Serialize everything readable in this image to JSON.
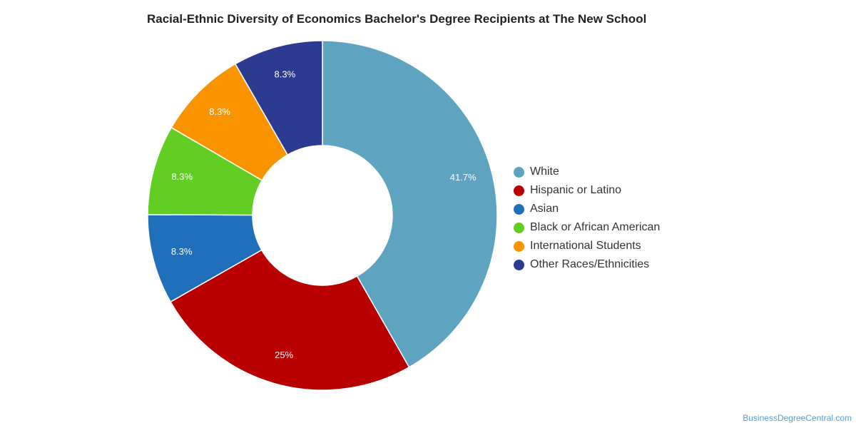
{
  "chart_data": {
    "type": "pie",
    "title": "Racial-Ethnic Diversity of Economics Bachelor's Degree Recipients at The New School",
    "legend_position": "right",
    "series": [
      {
        "name": "White",
        "value": 41.7,
        "label": "41.7%",
        "color": "#5ea3c0"
      },
      {
        "name": "Hispanic or Latino",
        "value": 25,
        "label": "25%",
        "color": "#b80000"
      },
      {
        "name": "Asian",
        "value": 8.3,
        "label": "8.3%",
        "color": "#1f6fba"
      },
      {
        "name": "Black or African American",
        "value": 8.3,
        "label": "8.3%",
        "color": "#62ce23"
      },
      {
        "name": "International Students",
        "value": 8.3,
        "label": "8.3%",
        "color": "#f99300"
      },
      {
        "name": "Other Races/Ethnicities",
        "value": 8.3,
        "label": "8.3%",
        "color": "#2c3a8f"
      }
    ]
  },
  "footer": {
    "source": "BusinessDegreeCentral.com"
  }
}
